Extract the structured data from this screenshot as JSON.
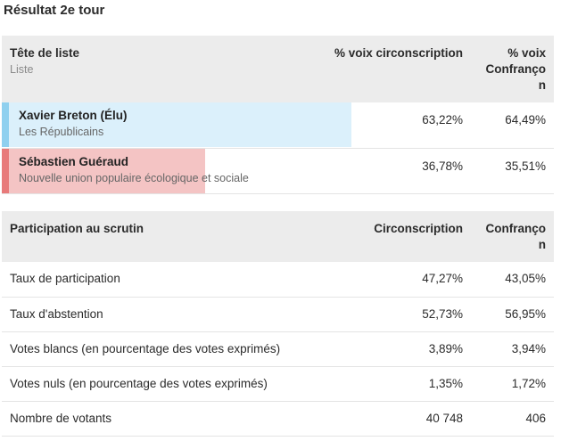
{
  "title": "Résultat 2e tour",
  "results": {
    "headers": {
      "list_label": "Tête de liste",
      "list_sub": "Liste",
      "circ": "% voix circonscription",
      "conf_line1": "% voix",
      "conf_line2": "Confranço",
      "conf_line3": "n"
    },
    "rows": [
      {
        "name": "Xavier Breton (Élu)",
        "party": "Les Républicains",
        "circ": "63,22%",
        "conf": "64,49%",
        "share": 63.22,
        "color": "#dbf0fb",
        "accent": "#8fd0ef"
      },
      {
        "name": "Sébastien Guéraud",
        "party": "Nouvelle union populaire écologique et sociale",
        "circ": "36,78%",
        "conf": "35,51%",
        "share": 36.78,
        "color": "#f4c4c4",
        "accent": "#e87a7a"
      }
    ]
  },
  "participation": {
    "headers": {
      "label": "Participation au scrutin",
      "circ": "Circonscription",
      "conf_line1": "Confranço",
      "conf_line2": "n"
    },
    "rows": [
      {
        "label": "Taux de participation",
        "circ": "47,27%",
        "conf": "43,05%"
      },
      {
        "label": "Taux d'abstention",
        "circ": "52,73%",
        "conf": "56,95%"
      },
      {
        "label": "Votes blancs (en pourcentage des votes exprimés)",
        "circ": "3,89%",
        "conf": "3,94%"
      },
      {
        "label": "Votes nuls (en pourcentage des votes exprimés)",
        "circ": "1,35%",
        "conf": "1,72%"
      },
      {
        "label": "Nombre de votants",
        "circ": "40 748",
        "conf": "406"
      }
    ]
  }
}
